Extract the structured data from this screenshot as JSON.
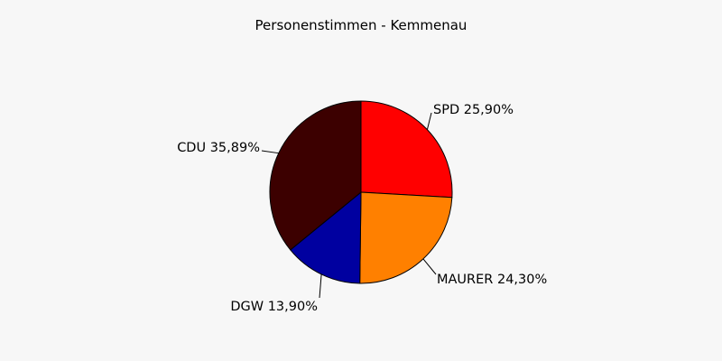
{
  "chart_data": {
    "type": "pie",
    "title": "Personenstimmen - Kemmenau",
    "legend": "none",
    "start_angle_deg": 90,
    "direction": "clockwise",
    "slices": [
      {
        "label": "SPD",
        "label_text": "SPD 25,90%",
        "value": 25.9,
        "color": "#ff0000"
      },
      {
        "label": "MAURER",
        "label_text": "MAURER 24,30%",
        "value": 24.3,
        "color": "#ff8000"
      },
      {
        "label": "DGW",
        "label_text": "DGW 13,90%",
        "value": 13.9,
        "color": "#0000a0"
      },
      {
        "label": "CDU",
        "label_text": "CDU 35,89%",
        "value": 35.89,
        "color": "#3c0000"
      }
    ]
  }
}
